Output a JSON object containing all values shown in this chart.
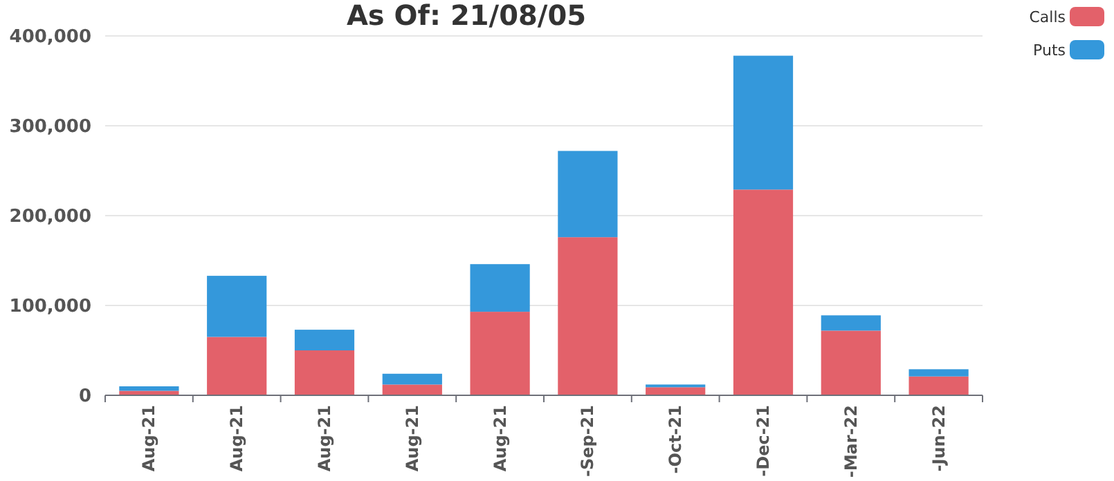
{
  "chart_data": {
    "type": "bar",
    "title": "As Of: 21/08/05",
    "categories": [
      "Aug-21",
      "Aug-21",
      "Aug-21",
      "Aug-21",
      "Aug-21",
      "-Sep-21",
      "-Oct-21",
      "-Dec-21",
      "-Mar-22",
      "-Jun-22"
    ],
    "stacked": true,
    "series": [
      {
        "name": "Calls",
        "color": "#e3616a",
        "values": [
          5000,
          65000,
          50000,
          12000,
          93000,
          176000,
          9000,
          229000,
          72000,
          21000
        ]
      },
      {
        "name": "Puts",
        "color": "#3498db",
        "values": [
          5000,
          68000,
          23000,
          12000,
          53000,
          96000,
          3000,
          149000,
          17000,
          8000
        ]
      }
    ],
    "ylim": [
      0,
      400000
    ],
    "yticks": [
      {
        "value": 0,
        "label": "0"
      },
      {
        "value": 100000,
        "label": "100,000"
      },
      {
        "value": 200000,
        "label": "200,000"
      },
      {
        "value": 300000,
        "label": "300,000"
      },
      {
        "value": 400000,
        "label": "400,000"
      }
    ],
    "grid": "y",
    "legend": "top right"
  }
}
